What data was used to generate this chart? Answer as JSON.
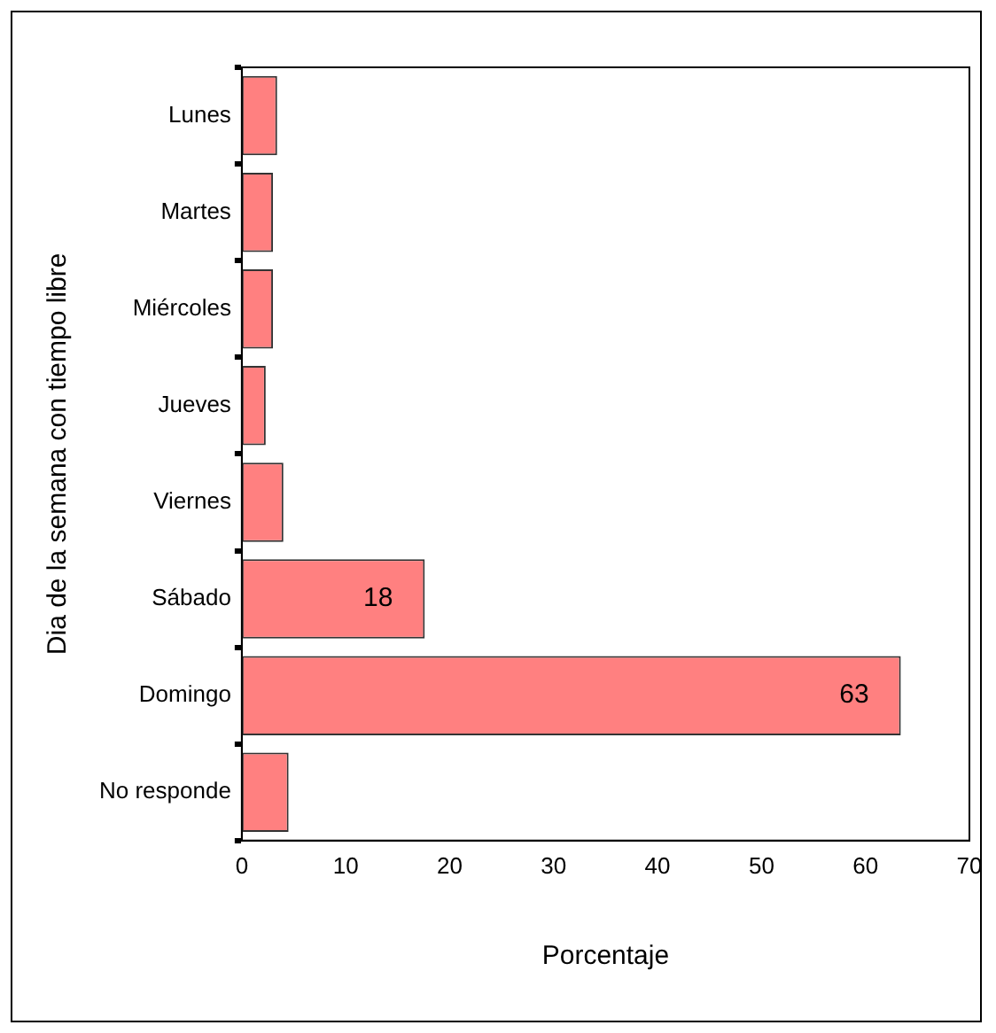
{
  "chart_data": {
    "type": "bar",
    "orientation": "horizontal",
    "xlabel": "Porcentaje",
    "ylabel": "Dia de la semana con tiempo libre",
    "categories": [
      "Lunes",
      "Martes",
      "Miércoles",
      "Jueves",
      "Viernes",
      "Sábado",
      "Domingo",
      "No responde"
    ],
    "values": [
      3.4,
      3.0,
      3.0,
      2.3,
      4.0,
      17.6,
      63.4,
      4.5
    ],
    "value_labels": [
      null,
      null,
      null,
      null,
      null,
      "18",
      "63",
      null
    ],
    "color": "#ff8080",
    "xlim": [
      0,
      70
    ],
    "xticks": [
      0,
      10,
      20,
      30,
      40,
      50,
      60,
      70
    ],
    "grid": false,
    "legend": false
  }
}
